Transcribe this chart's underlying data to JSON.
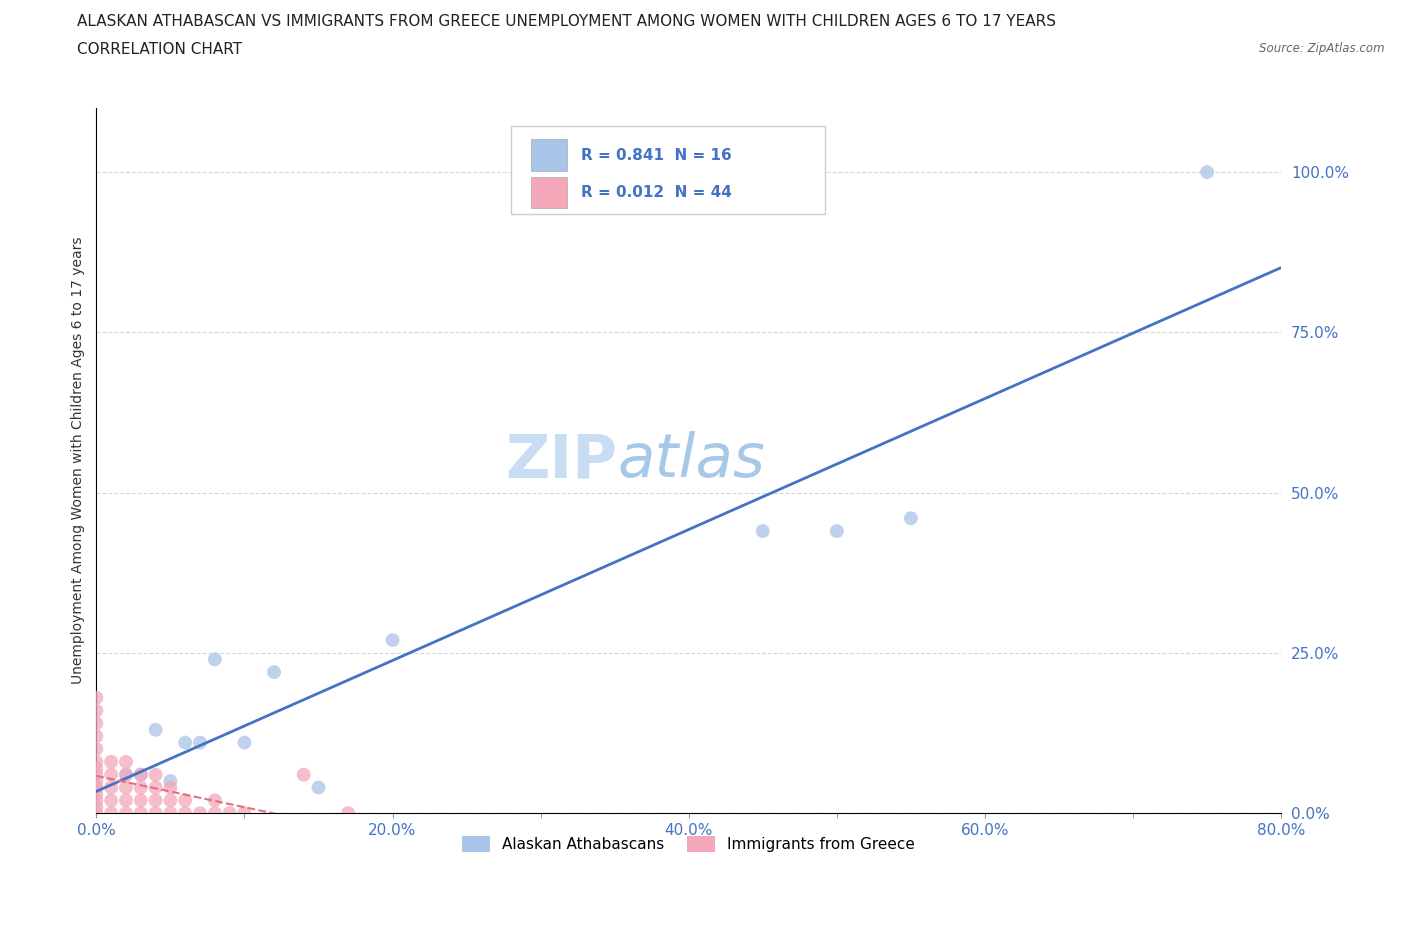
{
  "title_line1": "ALASKAN ATHABASCAN VS IMMIGRANTS FROM GREECE UNEMPLOYMENT AMONG WOMEN WITH CHILDREN AGES 6 TO 17 YEARS",
  "title_line2": "CORRELATION CHART",
  "source_text": "Source: ZipAtlas.com",
  "ylabel": "Unemployment Among Women with Children Ages 6 to 17 years",
  "xlim": [
    0.0,
    0.8
  ],
  "ylim": [
    0.0,
    1.1
  ],
  "xtick_labels": [
    "0.0%",
    "",
    "20.0%",
    "",
    "40.0%",
    "",
    "60.0%",
    "",
    "80.0%"
  ],
  "xtick_values": [
    0.0,
    0.1,
    0.2,
    0.3,
    0.4,
    0.5,
    0.6,
    0.7,
    0.8
  ],
  "ytick_labels": [
    "0.0%",
    "25.0%",
    "50.0%",
    "75.0%",
    "100.0%"
  ],
  "ytick_values": [
    0.0,
    0.25,
    0.5,
    0.75,
    1.0
  ],
  "watermark_part1": "ZIP",
  "watermark_part2": "atlas",
  "legend_R_blue": "R = 0.841",
  "legend_N_blue": "N = 16",
  "legend_R_pink": "R = 0.012",
  "legend_N_pink": "N = 44",
  "legend_label_blue": "Alaskan Athabascans",
  "legend_label_pink": "Immigrants from Greece",
  "blue_color": "#a8c4e8",
  "pink_color": "#f4a7b9",
  "blue_line_color": "#4472c4",
  "pink_line_color": "#e07080",
  "tick_label_color": "#4472c4",
  "athabascan_x": [
    0.0,
    0.02,
    0.03,
    0.04,
    0.05,
    0.06,
    0.07,
    0.08,
    0.1,
    0.12,
    0.15,
    0.2,
    0.45,
    0.5,
    0.55,
    0.75
  ],
  "athabascan_y": [
    0.04,
    0.06,
    0.06,
    0.13,
    0.05,
    0.11,
    0.11,
    0.24,
    0.11,
    0.22,
    0.04,
    0.27,
    0.44,
    0.44,
    0.46,
    1.0
  ],
  "greece_x": [
    0.0,
    0.0,
    0.0,
    0.0,
    0.0,
    0.0,
    0.0,
    0.0,
    0.0,
    0.0,
    0.0,
    0.0,
    0.0,
    0.0,
    0.01,
    0.01,
    0.01,
    0.01,
    0.01,
    0.02,
    0.02,
    0.02,
    0.02,
    0.02,
    0.03,
    0.03,
    0.03,
    0.03,
    0.04,
    0.04,
    0.04,
    0.04,
    0.05,
    0.05,
    0.05,
    0.06,
    0.06,
    0.07,
    0.08,
    0.08,
    0.09,
    0.1,
    0.14,
    0.17
  ],
  "greece_y": [
    0.0,
    0.01,
    0.02,
    0.03,
    0.04,
    0.05,
    0.06,
    0.07,
    0.08,
    0.1,
    0.12,
    0.14,
    0.16,
    0.18,
    0.0,
    0.02,
    0.04,
    0.06,
    0.08,
    0.0,
    0.02,
    0.04,
    0.06,
    0.08,
    0.0,
    0.02,
    0.04,
    0.06,
    0.0,
    0.02,
    0.04,
    0.06,
    0.0,
    0.02,
    0.04,
    0.0,
    0.02,
    0.0,
    0.0,
    0.02,
    0.0,
    0.0,
    0.06,
    0.0
  ],
  "grid_color": "#cccccc",
  "bg_color": "#ffffff",
  "title_fontsize": 11,
  "axis_label_fontsize": 10,
  "tick_fontsize": 11,
  "watermark_fontsize": 44,
  "marker_size": 100,
  "blue_line_endpt_y": 0.75
}
